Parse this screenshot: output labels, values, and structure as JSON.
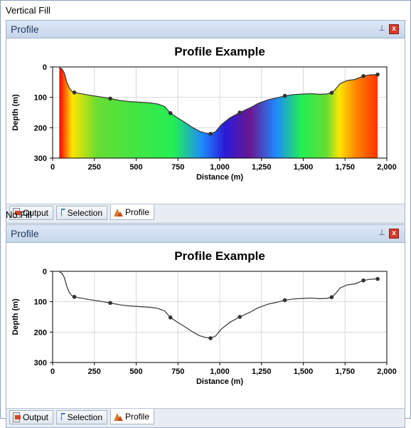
{
  "sections": [
    {
      "label": "Vertical Fill",
      "fill": "vertical"
    },
    {
      "label": "No Fill",
      "fill": "none"
    }
  ],
  "panel": {
    "title": "Profile",
    "close_label": "x",
    "tabs": [
      {
        "label": "Output",
        "icon": "output-icon"
      },
      {
        "label": "Selection",
        "icon": "selection-icon"
      },
      {
        "label": "Profile",
        "icon": "profile-icon",
        "active": true
      }
    ]
  },
  "chart_data": {
    "type": "area",
    "title": "Profile Example",
    "xlabel": "Distance (m)",
    "ylabel": "Depth (m)",
    "xlim": [
      0,
      2000
    ],
    "ylim": [
      0,
      300
    ],
    "y_inverted": true,
    "grid": true,
    "x_ticks": [
      0,
      250,
      500,
      750,
      1000,
      1250,
      1500,
      1750,
      2000
    ],
    "x_tick_labels": [
      "0",
      "250",
      "500",
      "750",
      "1,000",
      "1,250",
      "1,500",
      "1,750",
      "2,000"
    ],
    "y_ticks": [
      0,
      100,
      200,
      300
    ],
    "y_tick_labels": [
      "0",
      "100",
      "200",
      "300"
    ],
    "line": [
      [
        40,
        2
      ],
      [
        55,
        6
      ],
      [
        70,
        20
      ],
      [
        85,
        50
      ],
      [
        100,
        70
      ],
      [
        115,
        80
      ],
      [
        130,
        84
      ],
      [
        170,
        88
      ],
      [
        220,
        93
      ],
      [
        280,
        98
      ],
      [
        345,
        104
      ],
      [
        400,
        110
      ],
      [
        460,
        114
      ],
      [
        520,
        116
      ],
      [
        580,
        118
      ],
      [
        630,
        122
      ],
      [
        670,
        130
      ],
      [
        705,
        152
      ],
      [
        740,
        165
      ],
      [
        790,
        182
      ],
      [
        840,
        200
      ],
      [
        880,
        212
      ],
      [
        910,
        217
      ],
      [
        945,
        220
      ],
      [
        975,
        213
      ],
      [
        1010,
        190
      ],
      [
        1060,
        168
      ],
      [
        1120,
        150
      ],
      [
        1180,
        135
      ],
      [
        1230,
        120
      ],
      [
        1290,
        108
      ],
      [
        1340,
        102
      ],
      [
        1390,
        95
      ],
      [
        1440,
        91
      ],
      [
        1500,
        89
      ],
      [
        1550,
        88
      ],
      [
        1600,
        90
      ],
      [
        1640,
        89
      ],
      [
        1670,
        85
      ],
      [
        1690,
        75
      ],
      [
        1720,
        55
      ],
      [
        1760,
        45
      ],
      [
        1810,
        41
      ],
      [
        1860,
        30
      ],
      [
        1900,
        26
      ],
      [
        1945,
        25
      ]
    ],
    "points": [
      [
        130,
        84
      ],
      [
        345,
        104
      ],
      [
        705,
        152
      ],
      [
        945,
        220
      ],
      [
        1120,
        150
      ],
      [
        1390,
        95
      ],
      [
        1670,
        85
      ],
      [
        1860,
        30
      ],
      [
        1945,
        25
      ]
    ],
    "colors": {
      "line": "#333333",
      "point": "#333333",
      "grid": "#d8d8d8",
      "fill_stops": [
        "#ff0000",
        "#ffe400",
        "#66dd33",
        "#22ee55",
        "#1e88ff",
        "#2b1ad8",
        "#6a1890",
        "#1e88ff",
        "#22ee55",
        "#66dd33",
        "#ffe400",
        "#ff8800",
        "#ff3300"
      ]
    }
  }
}
